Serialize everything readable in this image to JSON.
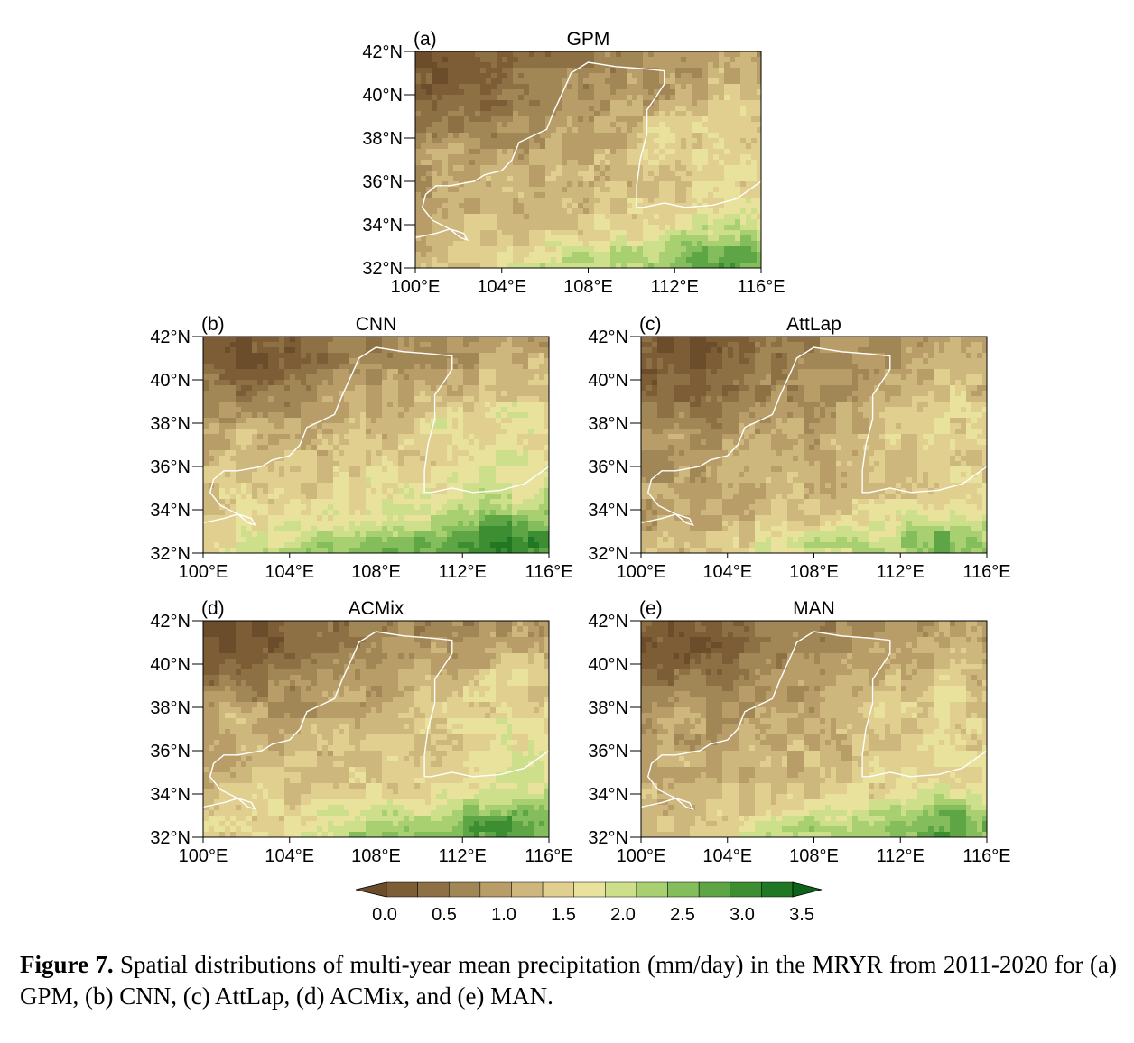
{
  "figure": {
    "panels": [
      {
        "id": "a",
        "label": "(a)",
        "title": "GPM"
      },
      {
        "id": "b",
        "label": "(b)",
        "title": "CNN"
      },
      {
        "id": "c",
        "label": "(c)",
        "title": "AttLap"
      },
      {
        "id": "d",
        "label": "(d)",
        "title": "ACMix"
      },
      {
        "id": "e",
        "label": "(e)",
        "title": "MAN"
      }
    ],
    "lat_ticks": [
      "42°N",
      "40°N",
      "38°N",
      "36°N",
      "34°N",
      "32°N"
    ],
    "lon_ticks": [
      "100°E",
      "104°E",
      "108°E",
      "112°E",
      "116°E"
    ],
    "colorbar": {
      "ticks": [
        "0.0",
        "0.5",
        "1.0",
        "1.5",
        "2.0",
        "2.5",
        "3.0",
        "3.5"
      ],
      "colors": [
        "#6b4d2b",
        "#7c5d36",
        "#8e7045",
        "#a18656",
        "#b89d68",
        "#cdb77c",
        "#e0cf8f",
        "#e8e29d",
        "#cddf8a",
        "#a8cf70",
        "#84bd5b",
        "#5ea645",
        "#3d8e33",
        "#207824",
        "#0d6418"
      ]
    },
    "caption": {
      "label": "Figure 7.",
      "text": " Spatial distributions of multi-year mean precipitation (mm/day) in the MRYR from 2011-2020 for (a) GPM, (b) CNN, (c) AttLap, (d) ACMix, and (e) MAN."
    }
  }
}
